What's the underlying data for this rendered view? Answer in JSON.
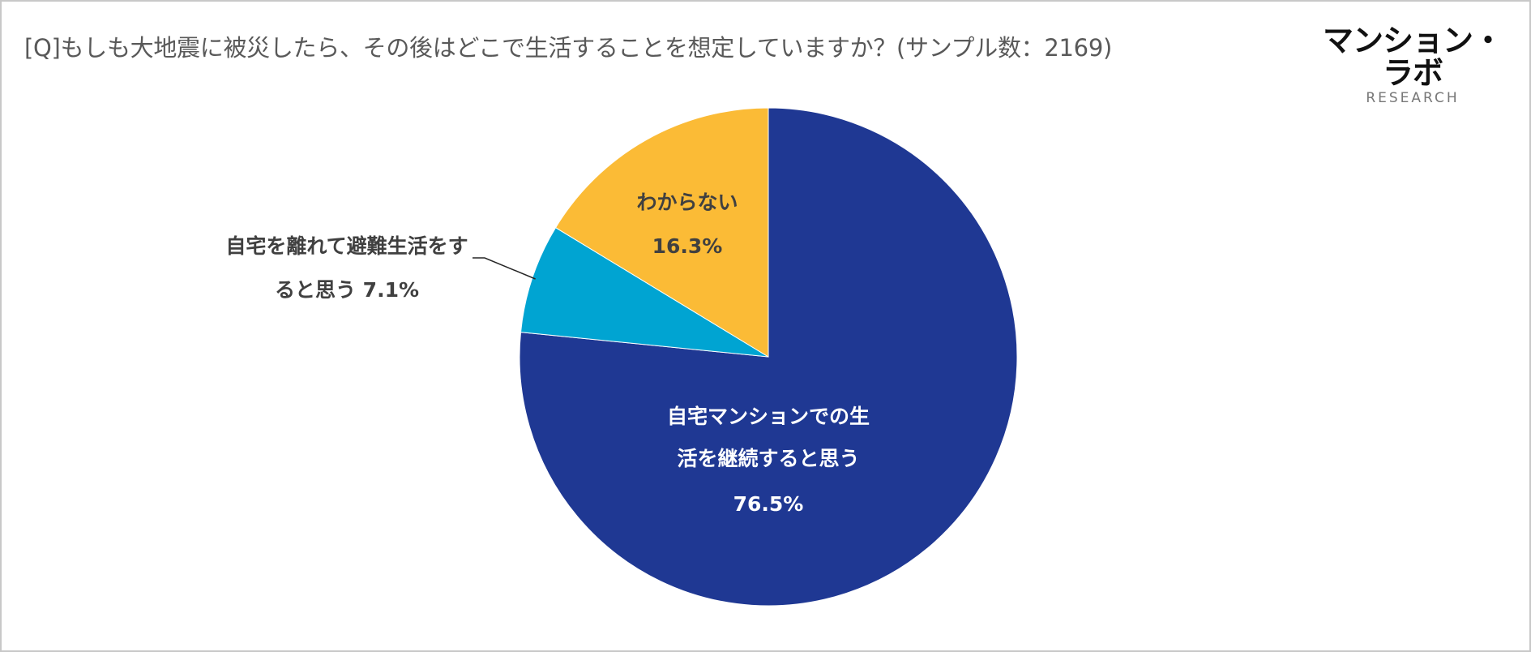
{
  "title": "[Q]もしも大地震に被災したら、その後はどこで生活することを想定していますか？(サンプル数：2169)",
  "brand": {
    "name": "マンション・ラボ",
    "sub": "RESEARCH"
  },
  "chart_data": {
    "type": "pie",
    "start_angle_deg": 0,
    "direction": "clockwise",
    "slices": [
      {
        "label_lines": [
          "自宅マンションでの生",
          "活を継続すると思う"
        ],
        "value_text": "76.5%",
        "value": 76.5,
        "color": "#1f3893",
        "label_color": "#ffffff"
      },
      {
        "label_lines": [
          "自宅を離れて避難生活をす",
          "ると思う 7.1%"
        ],
        "value_text": "",
        "value": 7.1,
        "color": "#00a4d2",
        "label_color": "#404040",
        "label_outside": true
      },
      {
        "label_lines": [
          "わからない"
        ],
        "value_text": "16.3%",
        "value": 16.3,
        "color": "#fbbb36",
        "label_color": "#404040"
      }
    ]
  }
}
